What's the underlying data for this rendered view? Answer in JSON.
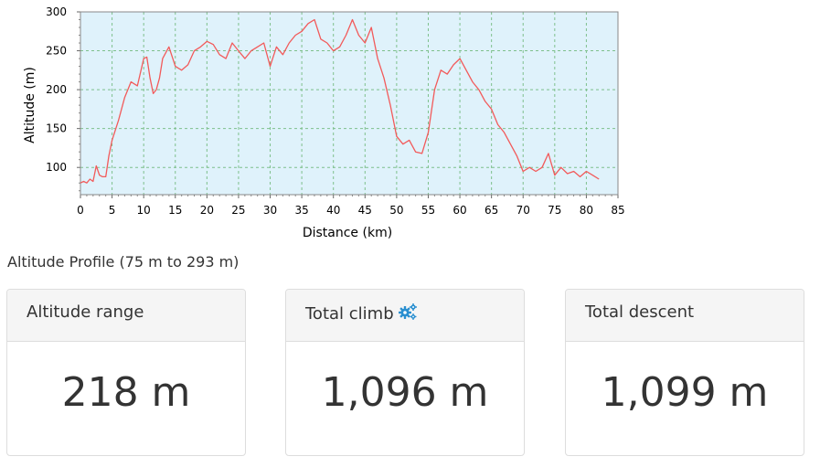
{
  "chart_data": {
    "type": "line",
    "xlabel": "Distance (km)",
    "ylabel": "Altitude (m)",
    "xlim": [
      0,
      85
    ],
    "ylim": [
      65,
      300
    ],
    "x_ticks": [
      0,
      5,
      10,
      15,
      20,
      25,
      30,
      35,
      40,
      45,
      50,
      55,
      60,
      65,
      70,
      75,
      80,
      85
    ],
    "y_ticks": [
      100,
      150,
      200,
      250,
      300
    ],
    "grid": true,
    "colors": {
      "line": "#f25a5a",
      "plot_bg": "#dff2fb",
      "grid": "#7ec08c"
    },
    "series": [
      {
        "x": [
          0,
          0.5,
          1,
          1.5,
          2,
          2.5,
          3,
          3.5,
          4,
          4.5,
          5,
          6,
          7,
          8,
          9,
          10,
          10.5,
          11,
          11.5,
          12,
          12.5,
          13,
          14,
          15,
          16,
          17,
          18,
          19,
          20,
          21,
          22,
          23,
          24,
          25,
          26,
          27,
          28,
          29,
          30,
          31,
          32,
          33,
          34,
          35,
          36,
          37,
          38,
          39,
          40,
          41,
          42,
          43,
          44,
          45,
          46,
          47,
          48,
          49,
          50,
          51,
          52,
          53,
          54,
          55,
          56,
          57,
          58,
          59,
          60,
          61,
          62,
          63,
          64,
          65,
          66,
          67,
          68,
          69,
          70,
          71,
          72,
          73,
          74,
          75,
          76,
          77,
          78,
          79,
          80,
          81,
          82
        ],
        "y": [
          80,
          82,
          80,
          85,
          82,
          102,
          90,
          88,
          88,
          115,
          135,
          160,
          190,
          210,
          205,
          240,
          242,
          215,
          195,
          200,
          215,
          240,
          255,
          230,
          225,
          232,
          250,
          255,
          262,
          258,
          245,
          240,
          260,
          250,
          240,
          250,
          255,
          260,
          230,
          255,
          245,
          260,
          270,
          275,
          285,
          290,
          265,
          260,
          250,
          255,
          270,
          290,
          270,
          260,
          280,
          240,
          215,
          180,
          140,
          130,
          135,
          120,
          118,
          145,
          200,
          225,
          220,
          232,
          240,
          225,
          210,
          200,
          185,
          175,
          155,
          145,
          130,
          115,
          95,
          100,
          95,
          100,
          118,
          90,
          100,
          92,
          95,
          88,
          95,
          90,
          85
        ]
      }
    ]
  },
  "profile_caption": "Altitude Profile (75 m to 293 m)",
  "cards": [
    {
      "title": "Altitude range",
      "value": "218 m"
    },
    {
      "title": "Total climb",
      "value": "1,096 m",
      "icon": "gears-icon"
    },
    {
      "title": "Total descent",
      "value": "1,099 m"
    }
  ]
}
